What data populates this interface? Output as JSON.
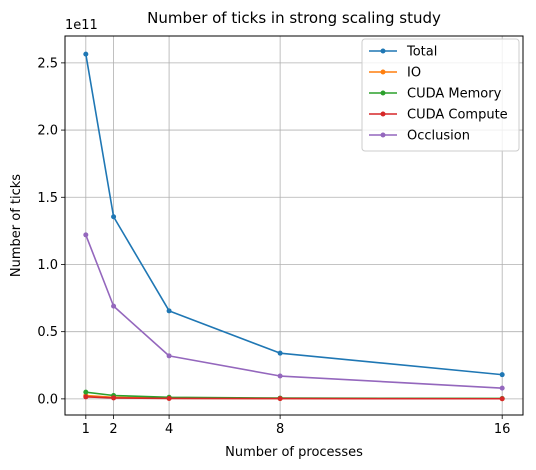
{
  "chart_data": {
    "type": "line",
    "title": "Number of ticks in strong scaling study",
    "xlabel": "Number of processes",
    "ylabel": "Number of ticks",
    "y_offset_label": "1e11",
    "x": [
      1,
      2,
      4,
      8,
      16
    ],
    "xticks": [
      1,
      2,
      4,
      8,
      16
    ],
    "xlim": [
      0.25,
      16.75
    ],
    "yticks": [
      0.0,
      0.5,
      1.0,
      1.5,
      2.0,
      2.5
    ],
    "ytick_labels": [
      "0.0",
      "0.5",
      "1.0",
      "1.5",
      "2.0",
      "2.5"
    ],
    "ylim": [
      -0.12,
      2.7
    ],
    "y_scale_note": "values in units of 1e11",
    "grid": true,
    "legend_position": "top-right",
    "series": [
      {
        "name": "Total",
        "color": "#1f77b4",
        "values": [
          2.565,
          1.355,
          0.655,
          0.34,
          0.18
        ]
      },
      {
        "name": "IO",
        "color": "#ff7f0e",
        "values": [
          0.025,
          0.012,
          0.005,
          0.003,
          0.001
        ]
      },
      {
        "name": "CUDA Memory",
        "color": "#2ca02c",
        "values": [
          0.05,
          0.025,
          0.012,
          0.006,
          0.003
        ]
      },
      {
        "name": "CUDA Compute",
        "color": "#d62728",
        "values": [
          0.015,
          0.007,
          0.003,
          0.002,
          0.001
        ]
      },
      {
        "name": "Occlusion",
        "color": "#9467bd",
        "values": [
          1.22,
          0.69,
          0.32,
          0.17,
          0.08
        ]
      }
    ]
  }
}
